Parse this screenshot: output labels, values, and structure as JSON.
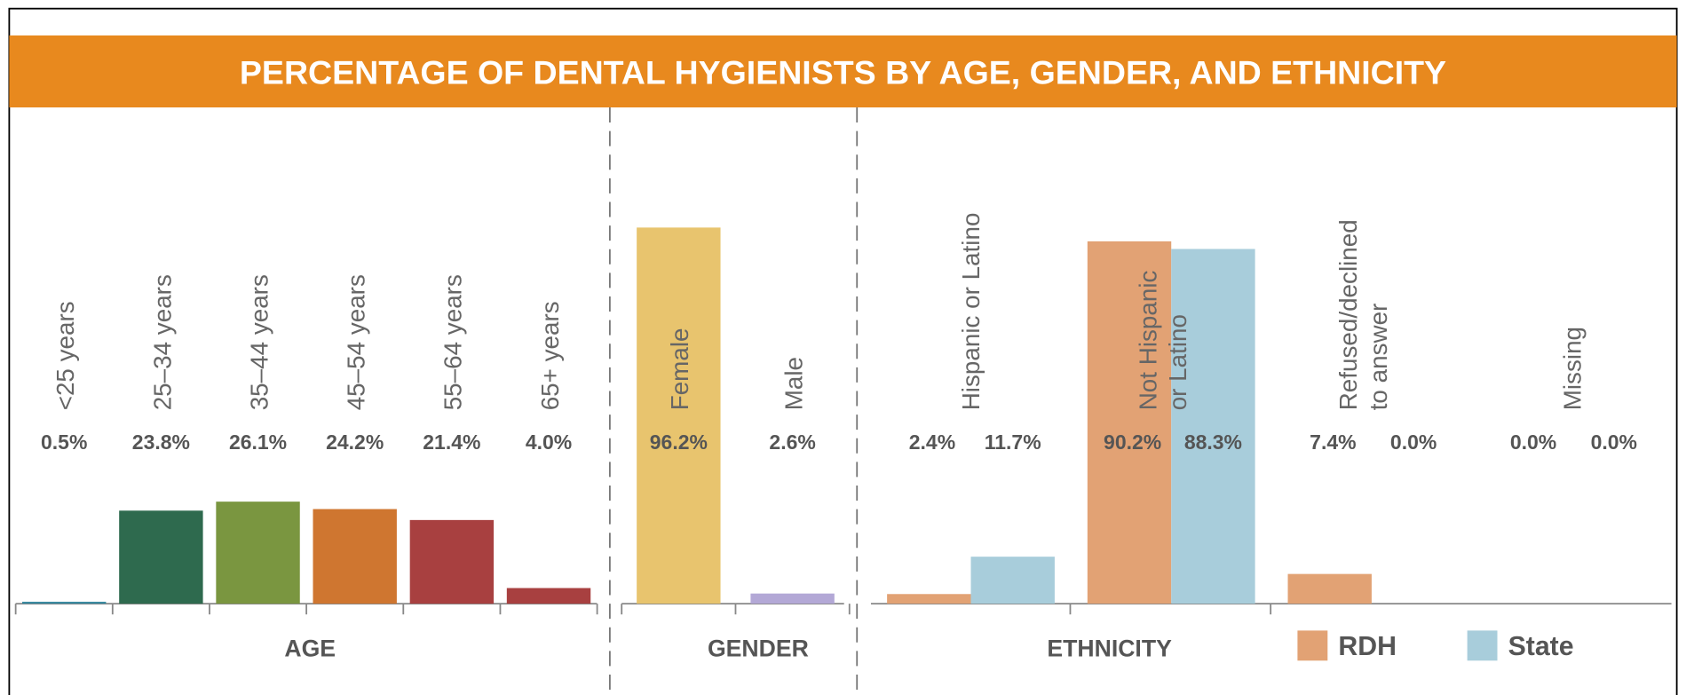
{
  "title": "PERCENTAGE OF DENTAL HYGIENISTS BY AGE, GENDER, AND ETHNICITY",
  "chart_data": [
    {
      "type": "bar",
      "axis_label": "AGE",
      "categories": [
        "<25 years",
        "25–34 years",
        "35–44 years",
        "45–54 years",
        "55–64 years",
        "65+ years"
      ],
      "values": [
        0.5,
        23.8,
        26.1,
        24.2,
        21.4,
        4.0
      ],
      "value_labels": [
        "0.5%",
        "23.8%",
        "26.1%",
        "24.2%",
        "21.4%",
        "4.0%"
      ],
      "colors": [
        "#3a8aa0",
        "#2e6a4e",
        "#7a9640",
        "#cf7630",
        "#a84040",
        "#a84040"
      ]
    },
    {
      "type": "bar",
      "axis_label": "GENDER",
      "categories": [
        "Female",
        "Male"
      ],
      "values": [
        96.2,
        2.6
      ],
      "value_labels": [
        "96.2%",
        "2.6%"
      ],
      "colors": [
        "#e8c46e",
        "#b3a8d6"
      ]
    },
    {
      "type": "grouped_bar",
      "axis_label": "ETHNICITY",
      "categories": [
        [
          "Hispanic or Latino"
        ],
        [
          "Not Hispanic",
          "or Latino"
        ],
        [
          "Refused/declined",
          "to answer"
        ],
        [
          "Missing"
        ]
      ],
      "series": [
        {
          "name": "RDH",
          "color": "#e2a274",
          "values": [
            2.4,
            90.2,
            7.4,
            0.0
          ],
          "value_labels": [
            "2.4%",
            "90.2%",
            "7.4%",
            "0.0%"
          ]
        },
        {
          "name": "State",
          "color": "#a8cddb",
          "values": [
            11.7,
            88.3,
            0.0,
            0.0
          ],
          "value_labels": [
            "11.7%",
            "88.3%",
            "0.0%",
            "0.0%"
          ]
        }
      ]
    }
  ]
}
